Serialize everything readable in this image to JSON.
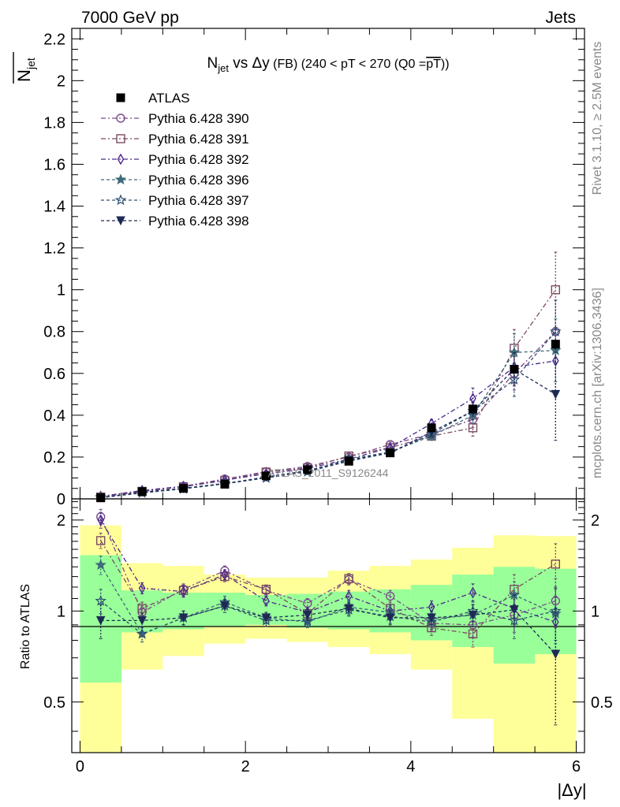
{
  "header": {
    "left": "7000 GeV pp",
    "right": "Jets"
  },
  "side_labels": {
    "rivet": "Rivet 3.1.10, ≥ 2.5M events",
    "mcplots": "mcplots.cern.ch [arXiv:1306.3436]"
  },
  "watermark": "ATLAS_2011_S9126244",
  "title": {
    "n": "N",
    "n_sub": "jet",
    "vs": " vs ",
    "delta": "Δy",
    "rest": " (FB) (240 < pT < 270 (Q0 =",
    "over": "pT",
    "close": "))"
  },
  "y_axis_label": {
    "main": "N",
    "sub": "jet"
  },
  "ratio_label": "Ratio to ATLAS",
  "x_axis_label": "|Δy|",
  "legend_entries": [
    "ATLAS",
    "Pythia 6.428 390",
    "Pythia 6.428 391",
    "Pythia 6.428 392",
    "Pythia 6.428 396",
    "Pythia 6.428 397",
    "Pythia 6.428 398"
  ],
  "colors": {
    "s390": "#7b4b8b",
    "s391": "#7b4a62",
    "s392": "#4b2a8b",
    "s396": "#3f6a7a",
    "s397": "#2f4f6f",
    "s398": "#1e2a55",
    "band_inner": "#99ff99",
    "band_outer": "#ffff99"
  },
  "chart_data": {
    "type": "scatter",
    "x": [
      0.25,
      0.75,
      1.25,
      1.75,
      2.25,
      2.75,
      3.25,
      3.75,
      4.25,
      4.75,
      5.25,
      5.75
    ],
    "x_edges": [
      0,
      0.5,
      1,
      1.5,
      2,
      2.5,
      3,
      3.5,
      4,
      4.5,
      5,
      5.5,
      6
    ],
    "xlim": [
      -0.1,
      6.1
    ],
    "ylim_main": [
      0,
      2.25
    ],
    "ylim_ratio": [
      0.34,
      2.35
    ],
    "ratio_log_scale": true,
    "x_ticks": [
      0,
      2,
      4,
      6
    ],
    "y_ticks_main": [
      0,
      0.2,
      0.4,
      0.6,
      0.8,
      1,
      1.2,
      1.4,
      1.6,
      1.8,
      2,
      2.2
    ],
    "y_tick_labels_main": [
      "0",
      "0.2",
      "0.4",
      "0.6",
      "0.8",
      "1",
      "1.2",
      "1.4",
      "1.6",
      "1.8",
      "2",
      "2.2"
    ],
    "y_ticks_ratio": [
      0.5,
      1,
      2
    ],
    "y_tick_labels_ratio": [
      "0.5",
      "1",
      "2"
    ],
    "data": {
      "name": "ATLAS",
      "values": [
        0.005,
        0.035,
        0.05,
        0.07,
        0.11,
        0.14,
        0.18,
        0.22,
        0.34,
        0.43,
        0.62,
        0.74
      ],
      "band_inner": [
        [
          0.58,
          1.53
        ],
        [
          0.85,
          1.17
        ],
        [
          0.87,
          1.15
        ],
        [
          0.89,
          1.15
        ],
        [
          0.9,
          1.13
        ],
        [
          0.88,
          1.14
        ],
        [
          0.87,
          1.16
        ],
        [
          0.85,
          1.18
        ],
        [
          0.8,
          1.22
        ],
        [
          0.76,
          1.32
        ],
        [
          0.67,
          1.4
        ],
        [
          0.72,
          1.38
        ]
      ],
      "band_outer": [
        [
          0.33,
          1.92
        ],
        [
          0.64,
          1.44
        ],
        [
          0.71,
          1.41
        ],
        [
          0.78,
          1.32
        ],
        [
          0.81,
          1.29
        ],
        [
          0.79,
          1.29
        ],
        [
          0.76,
          1.36
        ],
        [
          0.72,
          1.41
        ],
        [
          0.64,
          1.48
        ],
        [
          0.44,
          1.62
        ],
        [
          0.3,
          1.78
        ],
        [
          0.3,
          1.77
        ]
      ]
    },
    "series": [
      {
        "name": "Pythia 6.428 390",
        "marker": "circle",
        "dash": "6,3,2,3",
        "values": [
          0.01,
          0.035,
          0.06,
          0.095,
          0.13,
          0.155,
          0.2,
          0.26,
          0.31,
          0.38,
          0.6,
          0.8
        ],
        "err": [
          0.002,
          0.003,
          0.004,
          0.005,
          0.006,
          0.008,
          0.01,
          0.012,
          0.02,
          0.04,
          0.08,
          0.15
        ],
        "ratio": [
          2.05,
          0.99,
          1.18,
          1.36,
          1.17,
          1.06,
          1.27,
          1.12,
          0.91,
          0.9,
          0.97,
          1.08
        ],
        "ratio_err": [
          0.12,
          0.05,
          0.05,
          0.05,
          0.04,
          0.04,
          0.05,
          0.05,
          0.05,
          0.08,
          0.12,
          0.2
        ]
      },
      {
        "name": "Pythia 6.428 391",
        "marker": "square",
        "dash": "6,3,2,3",
        "values": [
          0.009,
          0.036,
          0.058,
          0.088,
          0.128,
          0.148,
          0.205,
          0.245,
          0.3,
          0.34,
          0.72,
          1.0
        ],
        "err": [
          0.002,
          0.003,
          0.004,
          0.005,
          0.006,
          0.008,
          0.01,
          0.012,
          0.02,
          0.04,
          0.09,
          0.18
        ],
        "ratio": [
          1.71,
          1.02,
          1.17,
          1.3,
          1.18,
          0.98,
          1.28,
          1.02,
          0.88,
          0.84,
          1.18,
          1.43
        ],
        "ratio_err": [
          0.1,
          0.05,
          0.05,
          0.05,
          0.04,
          0.04,
          0.05,
          0.05,
          0.05,
          0.08,
          0.14,
          0.24
        ]
      },
      {
        "name": "Pythia 6.428 392",
        "marker": "diamond",
        "dash": "6,3,2,3",
        "values": [
          0.012,
          0.04,
          0.06,
          0.09,
          0.12,
          0.145,
          0.19,
          0.245,
          0.36,
          0.48,
          0.63,
          0.66
        ],
        "err": [
          0.002,
          0.003,
          0.004,
          0.005,
          0.006,
          0.008,
          0.01,
          0.012,
          0.02,
          0.05,
          0.08,
          0.15
        ],
        "ratio": [
          2.0,
          1.19,
          1.16,
          1.32,
          1.08,
          0.99,
          1.12,
          1.0,
          1.03,
          1.15,
          1.02,
          0.92
        ],
        "ratio_err": [
          0.12,
          0.05,
          0.05,
          0.05,
          0.04,
          0.04,
          0.05,
          0.05,
          0.05,
          0.08,
          0.12,
          0.2
        ]
      },
      {
        "name": "Pythia 6.428 396",
        "marker": "star",
        "dash": "4,3",
        "values": [
          0.008,
          0.03,
          0.05,
          0.075,
          0.1,
          0.13,
          0.19,
          0.225,
          0.3,
          0.4,
          0.7,
          0.71
        ],
        "err": [
          0.002,
          0.003,
          0.004,
          0.005,
          0.006,
          0.008,
          0.01,
          0.012,
          0.02,
          0.04,
          0.09,
          0.15
        ],
        "ratio": [
          1.42,
          0.84,
          0.95,
          1.07,
          0.95,
          0.92,
          1.03,
          0.99,
          0.94,
          0.97,
          1.13,
          0.98
        ],
        "ratio_err": [
          0.1,
          0.05,
          0.05,
          0.05,
          0.04,
          0.04,
          0.05,
          0.05,
          0.05,
          0.08,
          0.12,
          0.2
        ]
      },
      {
        "name": "Pythia 6.428 397",
        "marker": "star-open",
        "dash": "4,3",
        "values": [
          0.006,
          0.028,
          0.048,
          0.072,
          0.1,
          0.13,
          0.18,
          0.22,
          0.31,
          0.42,
          0.57,
          0.8
        ],
        "err": [
          0.002,
          0.003,
          0.004,
          0.005,
          0.006,
          0.008,
          0.01,
          0.012,
          0.02,
          0.04,
          0.08,
          0.15
        ],
        "ratio": [
          1.08,
          0.84,
          0.95,
          1.04,
          0.93,
          0.93,
          1.01,
          0.96,
          0.92,
          1.0,
          0.93,
          1.0
        ],
        "ratio_err": [
          0.1,
          0.05,
          0.05,
          0.05,
          0.04,
          0.04,
          0.05,
          0.05,
          0.05,
          0.08,
          0.12,
          0.2
        ]
      },
      {
        "name": "Pythia 6.428 398",
        "marker": "triangle-down",
        "dash": "4,3",
        "values": [
          0.005,
          0.032,
          0.05,
          0.072,
          0.105,
          0.135,
          0.185,
          0.22,
          0.32,
          0.42,
          0.62,
          0.5
        ],
        "err": [
          0.002,
          0.003,
          0.004,
          0.005,
          0.006,
          0.008,
          0.01,
          0.012,
          0.02,
          0.04,
          0.08,
          0.22
        ],
        "ratio": [
          0.93,
          0.93,
          0.95,
          1.04,
          0.95,
          0.97,
          1.02,
          0.95,
          0.95,
          0.97,
          1.01,
          0.72
        ],
        "ratio_err": [
          0.12,
          0.05,
          0.05,
          0.05,
          0.04,
          0.04,
          0.05,
          0.05,
          0.05,
          0.08,
          0.12,
          0.3
        ]
      }
    ]
  }
}
